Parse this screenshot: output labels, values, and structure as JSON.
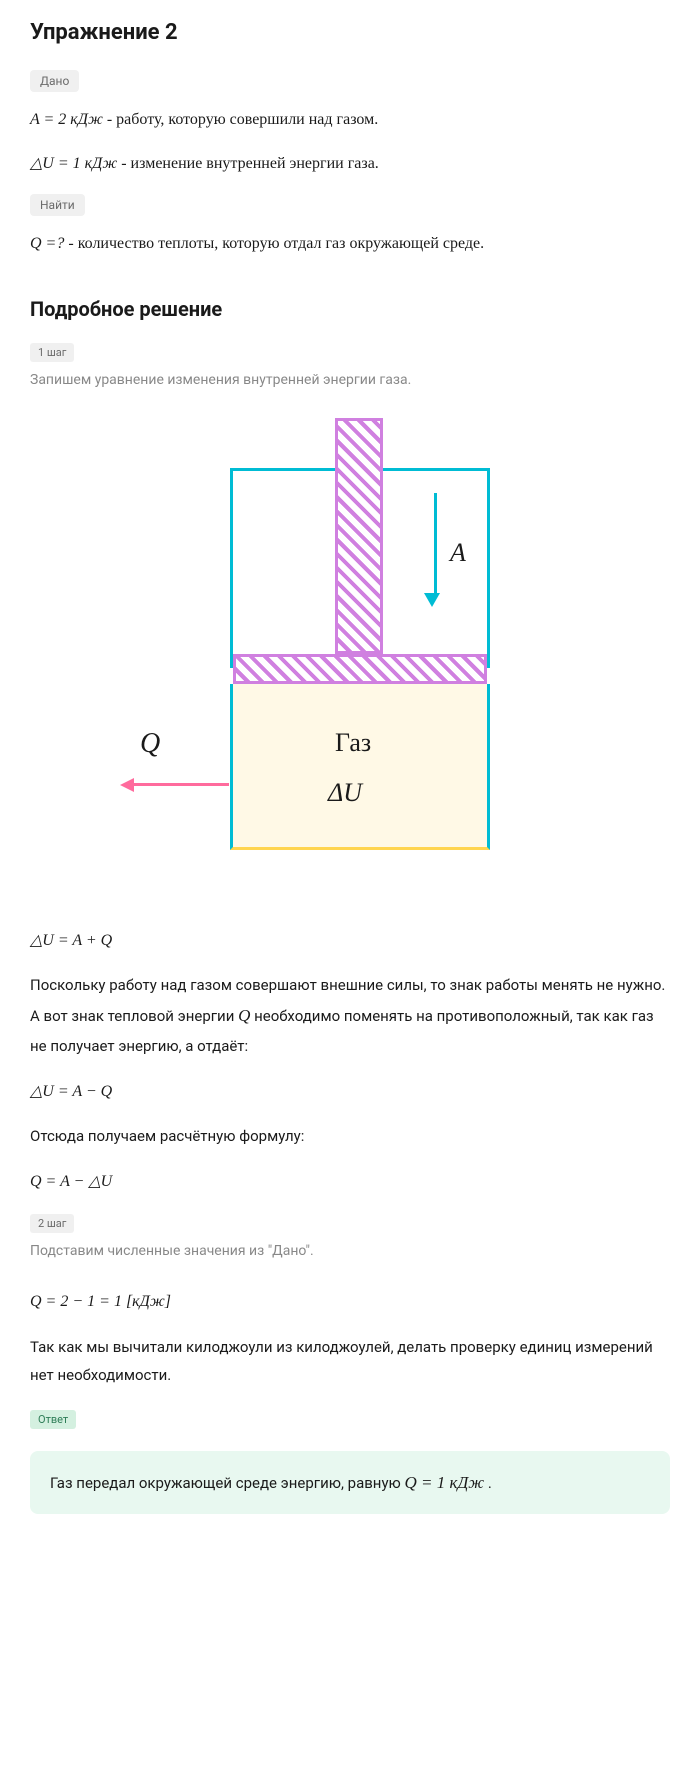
{
  "title": "Упражнение 2",
  "given": {
    "label": "Дано",
    "a_formula": "A = 2 кДж",
    "a_desc": " - работу, которую совершили над газом.",
    "du_formula": "△U = 1 кДж",
    "du_desc": " - изменение внутренней энергии газа."
  },
  "find": {
    "label": "Найти",
    "q_formula": "Q =?",
    "q_desc": " - количество теплоты, которую отдал газ окружающей среде."
  },
  "solution": {
    "heading": "Подробное решение",
    "step1": {
      "label": "1 шаг",
      "desc": "Запишем уравнение изменения внутренней энергии газа."
    },
    "step2": {
      "label": "2 шаг",
      "desc": "Подставим численные значения из \"Дано\"."
    }
  },
  "diagram": {
    "label_A": "A",
    "label_Q": "Q",
    "label_gas": "Газ",
    "label_dU": "ΔU",
    "colors": {
      "container_border": "#00bcd4",
      "piston_stroke": "#d080e0",
      "gas_fill": "#fff9e6",
      "gas_bottom": "#ffd54f",
      "arrow_a": "#00bcd4",
      "arrow_q": "#ff6b9d"
    }
  },
  "equations": {
    "eq1": "△U = A + Q",
    "explanation1_part1": "Поскольку работу над газом совершают внешние силы, то знак работы менять не нужно. А вот знак тепловой энергии ",
    "explanation1_q": "Q",
    "explanation1_part2": " необходимо поменять на противоположный, так как газ не получает энергию, а отдаёт:",
    "eq2": "△U = A − Q",
    "explanation2": "Отсюда получаем расчётную формулу:",
    "eq3": "Q = A − △U",
    "eq4": "Q = 2 − 1  =  1  [кДж]",
    "explanation3": "Так как мы вычитали килоджоули из килоджоулей, делать проверку единиц измерений нет необходимости."
  },
  "answer": {
    "label": "Ответ",
    "text_part1": "Газ передал окружающей среде энергию, равную ",
    "text_formula": "Q = 1 кДж",
    "text_part2": "."
  }
}
